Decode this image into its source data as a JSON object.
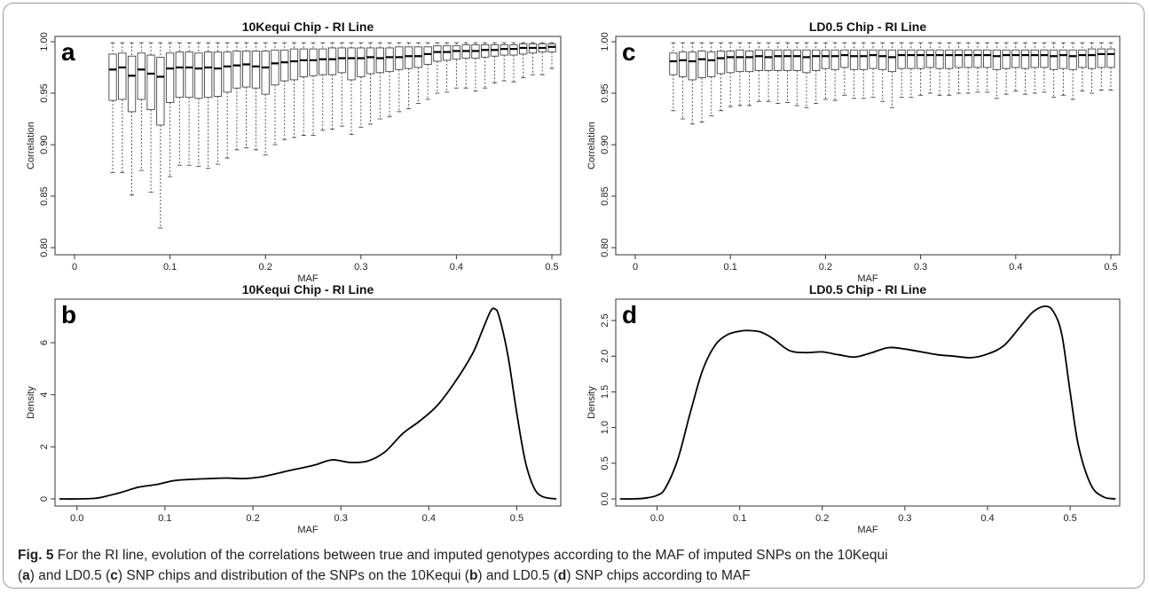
{
  "caption": {
    "fig_label": "Fig. 5",
    "line1": "For the RI line, evolution of the correlations between true and imputed genotypes according to the MAF of imputed SNPs on the 10Kequi",
    "open1": "(",
    "p_a": "a",
    "t1": ") and LD0.5 (",
    "p_c": "c",
    "t2": ") SNP chips and distribution of the SNPs on the 10Kequi (",
    "p_b": "b",
    "t3": ") and LD0.5 (",
    "p_d": "d",
    "t4": ") SNP chips according to MAF"
  },
  "chart_data": [
    {
      "panel": "a",
      "type": "box",
      "title": "10Kequi Chip - RI Line",
      "xlabel": "MAF",
      "ylabel": "Correlation",
      "xlim": [
        0,
        0.5
      ],
      "ylim": [
        0.8,
        1.0
      ],
      "xticks": [
        "0",
        "0.1",
        "0.2",
        "0.3",
        "0.4",
        "0.5"
      ],
      "yticks": [
        "0.80",
        "0.85",
        "0.90",
        "0.95",
        "1.00"
      ],
      "x": [
        0.04,
        0.05,
        0.06,
        0.07,
        0.08,
        0.09,
        0.1,
        0.11,
        0.12,
        0.13,
        0.14,
        0.15,
        0.16,
        0.17,
        0.18,
        0.19,
        0.2,
        0.21,
        0.22,
        0.23,
        0.24,
        0.25,
        0.26,
        0.27,
        0.28,
        0.29,
        0.3,
        0.31,
        0.32,
        0.33,
        0.34,
        0.35,
        0.36,
        0.37,
        0.38,
        0.39,
        0.4,
        0.41,
        0.42,
        0.43,
        0.44,
        0.45,
        0.46,
        0.47,
        0.48,
        0.49,
        0.5
      ],
      "median": [
        0.973,
        0.975,
        0.967,
        0.973,
        0.969,
        0.966,
        0.974,
        0.975,
        0.975,
        0.974,
        0.975,
        0.974,
        0.976,
        0.977,
        0.978,
        0.976,
        0.975,
        0.979,
        0.98,
        0.981,
        0.982,
        0.982,
        0.983,
        0.983,
        0.984,
        0.984,
        0.984,
        0.985,
        0.984,
        0.985,
        0.985,
        0.986,
        0.986,
        0.988,
        0.99,
        0.99,
        0.991,
        0.991,
        0.991,
        0.992,
        0.992,
        0.993,
        0.993,
        0.994,
        0.994,
        0.994,
        0.995
      ],
      "q1": [
        0.943,
        0.944,
        0.932,
        0.944,
        0.934,
        0.919,
        0.941,
        0.946,
        0.946,
        0.945,
        0.946,
        0.947,
        0.951,
        0.955,
        0.956,
        0.955,
        0.949,
        0.958,
        0.962,
        0.963,
        0.966,
        0.967,
        0.968,
        0.968,
        0.97,
        0.963,
        0.966,
        0.969,
        0.97,
        0.971,
        0.973,
        0.974,
        0.975,
        0.978,
        0.981,
        0.982,
        0.983,
        0.984,
        0.984,
        0.985,
        0.986,
        0.987,
        0.987,
        0.988,
        0.989,
        0.99,
        0.99
      ],
      "q3": [
        0.988,
        0.989,
        0.986,
        0.989,
        0.987,
        0.985,
        0.989,
        0.99,
        0.99,
        0.989,
        0.99,
        0.99,
        0.99,
        0.991,
        0.991,
        0.991,
        0.991,
        0.992,
        0.992,
        0.993,
        0.993,
        0.993,
        0.993,
        0.994,
        0.994,
        0.994,
        0.994,
        0.994,
        0.994,
        0.994,
        0.995,
        0.995,
        0.995,
        0.995,
        0.996,
        0.996,
        0.996,
        0.997,
        0.997,
        0.997,
        0.997,
        0.997,
        0.997,
        0.998,
        0.998,
        0.998,
        0.998
      ],
      "whisker_low": [
        0.873,
        0.873,
        0.851,
        0.875,
        0.854,
        0.819,
        0.869,
        0.88,
        0.88,
        0.879,
        0.877,
        0.881,
        0.887,
        0.895,
        0.897,
        0.895,
        0.89,
        0.9,
        0.905,
        0.907,
        0.909,
        0.909,
        0.914,
        0.915,
        0.918,
        0.91,
        0.917,
        0.92,
        0.925,
        0.927,
        0.932,
        0.935,
        0.94,
        0.944,
        0.95,
        0.951,
        0.955,
        0.955,
        0.952,
        0.955,
        0.96,
        0.962,
        0.961,
        0.965,
        0.968,
        0.968,
        0.974
      ],
      "whisker_high": [
        0.999,
        0.999,
        0.999,
        0.999,
        0.999,
        0.999,
        0.999,
        0.999,
        0.999,
        0.999,
        0.999,
        0.999,
        0.999,
        0.999,
        0.999,
        0.999,
        0.999,
        0.999,
        0.999,
        0.999,
        0.999,
        0.999,
        0.999,
        0.999,
        0.999,
        0.999,
        0.999,
        0.999,
        0.999,
        0.999,
        0.999,
        0.999,
        0.999,
        0.999,
        0.999,
        0.999,
        0.999,
        0.999,
        0.999,
        0.999,
        0.999,
        0.999,
        0.999,
        0.999,
        0.999,
        0.999,
        0.999
      ]
    },
    {
      "panel": "c",
      "type": "box",
      "title": "LD0.5 Chip - RI Line",
      "xlabel": "MAF",
      "ylabel": "Correlation",
      "xlim": [
        0,
        0.5
      ],
      "ylim": [
        0.8,
        1.0
      ],
      "xticks": [
        "0",
        "0.1",
        "0.2",
        "0.3",
        "0.4",
        "0.5"
      ],
      "yticks": [
        "0.80",
        "0.85",
        "0.90",
        "0.95",
        "1.00"
      ],
      "x": [
        0.04,
        0.05,
        0.06,
        0.07,
        0.08,
        0.09,
        0.1,
        0.11,
        0.12,
        0.13,
        0.14,
        0.15,
        0.16,
        0.17,
        0.18,
        0.19,
        0.2,
        0.21,
        0.22,
        0.23,
        0.24,
        0.25,
        0.26,
        0.27,
        0.28,
        0.29,
        0.3,
        0.31,
        0.32,
        0.33,
        0.34,
        0.35,
        0.36,
        0.37,
        0.38,
        0.39,
        0.4,
        0.41,
        0.42,
        0.43,
        0.44,
        0.45,
        0.46,
        0.47,
        0.48,
        0.49,
        0.5
      ],
      "median": [
        0.981,
        0.982,
        0.981,
        0.983,
        0.982,
        0.984,
        0.985,
        0.985,
        0.985,
        0.986,
        0.985,
        0.986,
        0.986,
        0.986,
        0.985,
        0.986,
        0.986,
        0.986,
        0.987,
        0.986,
        0.986,
        0.987,
        0.986,
        0.985,
        0.987,
        0.987,
        0.987,
        0.987,
        0.987,
        0.987,
        0.987,
        0.987,
        0.987,
        0.987,
        0.986,
        0.987,
        0.987,
        0.987,
        0.987,
        0.987,
        0.986,
        0.987,
        0.986,
        0.987,
        0.987,
        0.988,
        0.988
      ],
      "q1": [
        0.968,
        0.966,
        0.963,
        0.965,
        0.966,
        0.969,
        0.97,
        0.971,
        0.971,
        0.972,
        0.972,
        0.972,
        0.972,
        0.972,
        0.97,
        0.972,
        0.974,
        0.973,
        0.975,
        0.973,
        0.973,
        0.974,
        0.973,
        0.971,
        0.974,
        0.974,
        0.974,
        0.975,
        0.974,
        0.974,
        0.975,
        0.975,
        0.975,
        0.975,
        0.973,
        0.974,
        0.975,
        0.974,
        0.975,
        0.975,
        0.973,
        0.974,
        0.973,
        0.975,
        0.974,
        0.975,
        0.975
      ],
      "q3": [
        0.989,
        0.99,
        0.99,
        0.991,
        0.99,
        0.991,
        0.991,
        0.992,
        0.991,
        0.992,
        0.992,
        0.992,
        0.992,
        0.992,
        0.992,
        0.992,
        0.992,
        0.992,
        0.992,
        0.992,
        0.992,
        0.992,
        0.992,
        0.992,
        0.992,
        0.992,
        0.992,
        0.992,
        0.992,
        0.992,
        0.992,
        0.992,
        0.992,
        0.992,
        0.992,
        0.992,
        0.992,
        0.992,
        0.992,
        0.992,
        0.992,
        0.992,
        0.992,
        0.992,
        0.993,
        0.993,
        0.993
      ],
      "whisker_low": [
        0.933,
        0.925,
        0.92,
        0.922,
        0.928,
        0.933,
        0.937,
        0.938,
        0.938,
        0.942,
        0.942,
        0.94,
        0.941,
        0.938,
        0.936,
        0.94,
        0.944,
        0.943,
        0.948,
        0.945,
        0.945,
        0.946,
        0.942,
        0.936,
        0.946,
        0.946,
        0.948,
        0.95,
        0.948,
        0.948,
        0.95,
        0.95,
        0.951,
        0.951,
        0.945,
        0.949,
        0.952,
        0.949,
        0.95,
        0.951,
        0.946,
        0.948,
        0.944,
        0.952,
        0.95,
        0.953,
        0.953
      ],
      "whisker_high": [
        0.999,
        0.999,
        0.999,
        0.999,
        0.999,
        0.999,
        0.999,
        0.999,
        0.999,
        0.999,
        0.999,
        0.999,
        0.999,
        0.999,
        0.999,
        0.999,
        0.999,
        0.999,
        0.999,
        0.999,
        0.999,
        0.999,
        0.999,
        0.999,
        0.999,
        0.999,
        0.999,
        0.999,
        0.999,
        0.999,
        0.999,
        0.999,
        0.999,
        0.999,
        0.999,
        0.999,
        0.999,
        0.999,
        0.999,
        0.999,
        0.999,
        0.999,
        0.999,
        0.999,
        0.999,
        0.999,
        0.999
      ]
    },
    {
      "panel": "b",
      "type": "line",
      "title": "10Kequi Chip - RI Line",
      "xlabel": "MAF",
      "ylabel": "Density",
      "xlim": [
        -0.025,
        0.55
      ],
      "ylim": [
        0,
        7.4
      ],
      "xticks": [
        "0.0",
        "0.1",
        "0.2",
        "0.3",
        "0.4",
        "0.5"
      ],
      "yticks": [
        "0",
        "2",
        "4",
        "6"
      ],
      "x": [
        -0.02,
        0.0,
        0.02,
        0.03,
        0.05,
        0.07,
        0.09,
        0.11,
        0.13,
        0.15,
        0.17,
        0.19,
        0.21,
        0.23,
        0.25,
        0.27,
        0.29,
        0.31,
        0.33,
        0.35,
        0.37,
        0.39,
        0.41,
        0.43,
        0.45,
        0.46,
        0.47,
        0.475,
        0.48,
        0.49,
        0.5,
        0.51,
        0.52,
        0.53,
        0.545
      ],
      "y": [
        0,
        0,
        0.02,
        0.08,
        0.25,
        0.45,
        0.55,
        0.7,
        0.75,
        0.78,
        0.8,
        0.78,
        0.85,
        1.0,
        1.15,
        1.3,
        1.5,
        1.4,
        1.45,
        1.8,
        2.5,
        3.0,
        3.6,
        4.5,
        5.6,
        6.4,
        7.2,
        7.3,
        7.0,
        5.5,
        3.3,
        1.4,
        0.4,
        0.08,
        0
      ]
    },
    {
      "panel": "d",
      "type": "line",
      "title": "LD0.5 Chip - RI Line",
      "xlabel": "MAF",
      "ylabel": "Density",
      "xlim": [
        -0.05,
        0.56
      ],
      "ylim": [
        0,
        2.7
      ],
      "xticks": [
        "0.0",
        "0.1",
        "0.2",
        "0.3",
        "0.4",
        "0.5"
      ],
      "yticks": [
        "0.0",
        "0.5",
        "1.0",
        "1.5",
        "2.0",
        "2.5"
      ],
      "x": [
        -0.045,
        -0.03,
        -0.015,
        0.0,
        0.01,
        0.025,
        0.04,
        0.055,
        0.07,
        0.085,
        0.1,
        0.11,
        0.125,
        0.14,
        0.16,
        0.18,
        0.2,
        0.22,
        0.24,
        0.26,
        0.28,
        0.3,
        0.32,
        0.34,
        0.36,
        0.38,
        0.4,
        0.42,
        0.44,
        0.455,
        0.47,
        0.48,
        0.49,
        0.5,
        0.51,
        0.525,
        0.54,
        0.555
      ],
      "y": [
        0,
        0.0,
        0.01,
        0.05,
        0.15,
        0.55,
        1.2,
        1.8,
        2.15,
        2.3,
        2.35,
        2.36,
        2.34,
        2.25,
        2.08,
        2.05,
        2.06,
        2.02,
        1.99,
        2.05,
        2.12,
        2.1,
        2.06,
        2.02,
        2.0,
        1.98,
        2.03,
        2.15,
        2.42,
        2.62,
        2.7,
        2.62,
        2.3,
        1.5,
        0.75,
        0.2,
        0.03,
        0
      ]
    }
  ],
  "panel_letters": {
    "a": "a",
    "b": "b",
    "c": "c",
    "d": "d"
  }
}
